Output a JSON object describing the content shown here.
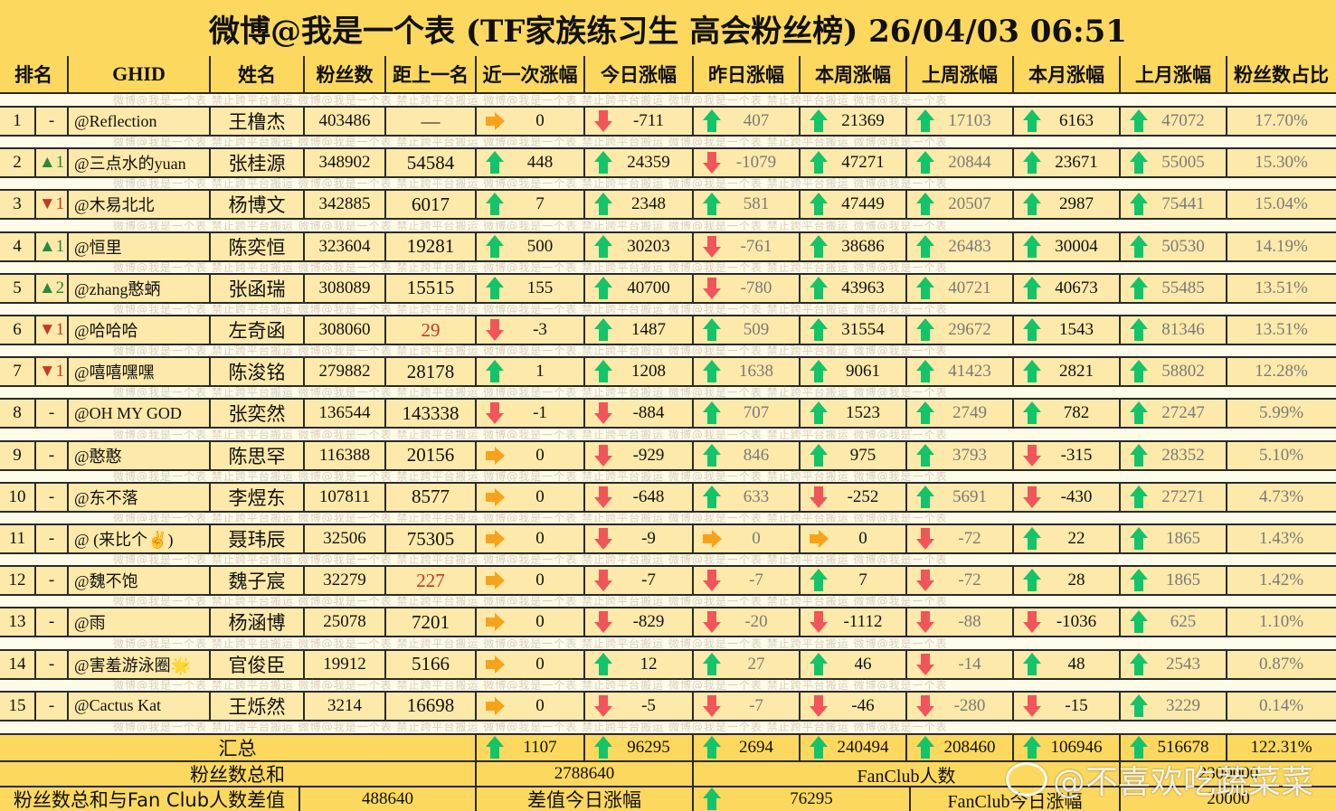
{
  "title": "微博@我是一个表 (TF家族练习生 高会粉丝榜)  26/04/03 06:51",
  "watermark_strip": "微博@我是一个表   禁止跨平台搬运   微博@我是一个表   禁止跨平台搬运   微博@我是一个表   禁止跨平台搬运   微博@我是一个表   禁止跨平台搬运   微博@我是一个表",
  "headers": {
    "rank": "排名",
    "ghid": "GHID",
    "name": "姓名",
    "fans": "粉丝数",
    "gap": "距上一名",
    "recent": "近一次涨幅",
    "today": "今日涨幅",
    "yesterday": "昨日涨幅",
    "this_week": "本周涨幅",
    "last_week": "上周涨幅",
    "this_month": "本月涨幅",
    "last_month": "上月涨幅",
    "share": "粉丝数占比"
  },
  "colors": {
    "header_bg": "#fcd85e",
    "row_bg": "#fde9a9",
    "up": "#13c46a",
    "down": "#f0555a",
    "flat": "#f7a21b",
    "gap_alert": "#c0392b"
  },
  "rows": [
    {
      "rank": "1",
      "change": "-",
      "change_dir": "none",
      "ghid": "@Reflection",
      "name": "王橹杰",
      "fans": "403486",
      "gap": "—",
      "gap_alert": false,
      "recent": {
        "dir": "right",
        "v": "0"
      },
      "today": {
        "dir": "down",
        "v": "-711"
      },
      "yesterday": {
        "dir": "up",
        "v": "407"
      },
      "this_week": {
        "dir": "up",
        "v": "21369"
      },
      "last_week": {
        "dir": "up",
        "v": "17103"
      },
      "this_month": {
        "dir": "up",
        "v": "6163"
      },
      "last_month": {
        "dir": "up",
        "v": "47072"
      },
      "share": "17.70%"
    },
    {
      "rank": "2",
      "change": "▲1",
      "change_dir": "up",
      "ghid": "@三点水的yuan",
      "name": "张桂源",
      "fans": "348902",
      "gap": "54584",
      "gap_alert": false,
      "recent": {
        "dir": "up",
        "v": "448"
      },
      "today": {
        "dir": "up",
        "v": "24359"
      },
      "yesterday": {
        "dir": "down",
        "v": "-1079"
      },
      "this_week": {
        "dir": "up",
        "v": "47271"
      },
      "last_week": {
        "dir": "up",
        "v": "20844"
      },
      "this_month": {
        "dir": "up",
        "v": "23671"
      },
      "last_month": {
        "dir": "up",
        "v": "55005"
      },
      "share": "15.30%"
    },
    {
      "rank": "3",
      "change": "▼1",
      "change_dir": "down",
      "ghid": "@木易北北",
      "name": "杨博文",
      "fans": "342885",
      "gap": "6017",
      "gap_alert": false,
      "recent": {
        "dir": "up",
        "v": "7"
      },
      "today": {
        "dir": "up",
        "v": "2348"
      },
      "yesterday": {
        "dir": "up",
        "v": "581"
      },
      "this_week": {
        "dir": "up",
        "v": "47449"
      },
      "last_week": {
        "dir": "up",
        "v": "20507"
      },
      "this_month": {
        "dir": "up",
        "v": "2987"
      },
      "last_month": {
        "dir": "up",
        "v": "75441"
      },
      "share": "15.04%"
    },
    {
      "rank": "4",
      "change": "▲1",
      "change_dir": "up",
      "ghid": "@恒里",
      "name": "陈奕恒",
      "fans": "323604",
      "gap": "19281",
      "gap_alert": false,
      "recent": {
        "dir": "up",
        "v": "500"
      },
      "today": {
        "dir": "up",
        "v": "30203"
      },
      "yesterday": {
        "dir": "down",
        "v": "-761"
      },
      "this_week": {
        "dir": "up",
        "v": "38686"
      },
      "last_week": {
        "dir": "up",
        "v": "26483"
      },
      "this_month": {
        "dir": "up",
        "v": "30004"
      },
      "last_month": {
        "dir": "up",
        "v": "50530"
      },
      "share": "14.19%"
    },
    {
      "rank": "5",
      "change": "▲2",
      "change_dir": "up",
      "ghid": "@zhang憨蛃",
      "name": "张函瑞",
      "fans": "308089",
      "gap": "15515",
      "gap_alert": false,
      "recent": {
        "dir": "up",
        "v": "155"
      },
      "today": {
        "dir": "up",
        "v": "40700"
      },
      "yesterday": {
        "dir": "down",
        "v": "-780"
      },
      "this_week": {
        "dir": "up",
        "v": "43963"
      },
      "last_week": {
        "dir": "up",
        "v": "40721"
      },
      "this_month": {
        "dir": "up",
        "v": "40673"
      },
      "last_month": {
        "dir": "up",
        "v": "55485"
      },
      "share": "13.51%"
    },
    {
      "rank": "6",
      "change": "▼1",
      "change_dir": "down",
      "ghid": "@哈哈哈",
      "name": "左奇函",
      "fans": "308060",
      "gap": "29",
      "gap_alert": true,
      "recent": {
        "dir": "down",
        "v": "-3"
      },
      "today": {
        "dir": "up",
        "v": "1487"
      },
      "yesterday": {
        "dir": "up",
        "v": "509"
      },
      "this_week": {
        "dir": "up",
        "v": "31554"
      },
      "last_week": {
        "dir": "up",
        "v": "29672"
      },
      "this_month": {
        "dir": "up",
        "v": "1543"
      },
      "last_month": {
        "dir": "up",
        "v": "81346"
      },
      "share": "13.51%"
    },
    {
      "rank": "7",
      "change": "▼1",
      "change_dir": "down",
      "ghid": "@嘻嘻嘿嘿",
      "name": "陈浚铭",
      "fans": "279882",
      "gap": "28178",
      "gap_alert": false,
      "recent": {
        "dir": "up",
        "v": "1"
      },
      "today": {
        "dir": "up",
        "v": "1208"
      },
      "yesterday": {
        "dir": "up",
        "v": "1638"
      },
      "this_week": {
        "dir": "up",
        "v": "9061"
      },
      "last_week": {
        "dir": "up",
        "v": "41423"
      },
      "this_month": {
        "dir": "up",
        "v": "2821"
      },
      "last_month": {
        "dir": "up",
        "v": "58802"
      },
      "share": "12.28%"
    },
    {
      "rank": "8",
      "change": "-",
      "change_dir": "none",
      "ghid": "@OH MY GOD",
      "name": "张奕然",
      "fans": "136544",
      "gap": "143338",
      "gap_alert": false,
      "recent": {
        "dir": "down",
        "v": "-1"
      },
      "today": {
        "dir": "down",
        "v": "-884"
      },
      "yesterday": {
        "dir": "up",
        "v": "707"
      },
      "this_week": {
        "dir": "up",
        "v": "1523"
      },
      "last_week": {
        "dir": "up",
        "v": "2749"
      },
      "this_month": {
        "dir": "up",
        "v": "782"
      },
      "last_month": {
        "dir": "up",
        "v": "27247"
      },
      "share": "5.99%"
    },
    {
      "rank": "9",
      "change": "-",
      "change_dir": "none",
      "ghid": "@憨憨",
      "name": "陈思罕",
      "fans": "116388",
      "gap": "20156",
      "gap_alert": false,
      "recent": {
        "dir": "right",
        "v": "0"
      },
      "today": {
        "dir": "down",
        "v": "-929"
      },
      "yesterday": {
        "dir": "up",
        "v": "846"
      },
      "this_week": {
        "dir": "up",
        "v": "975"
      },
      "last_week": {
        "dir": "up",
        "v": "3793"
      },
      "this_month": {
        "dir": "down",
        "v": "-315"
      },
      "last_month": {
        "dir": "up",
        "v": "28352"
      },
      "share": "5.10%"
    },
    {
      "rank": "10",
      "change": "-",
      "change_dir": "none",
      "ghid": "@东不落",
      "name": "李煜东",
      "fans": "107811",
      "gap": "8577",
      "gap_alert": false,
      "recent": {
        "dir": "right",
        "v": "0"
      },
      "today": {
        "dir": "down",
        "v": "-648"
      },
      "yesterday": {
        "dir": "up",
        "v": "633"
      },
      "this_week": {
        "dir": "down",
        "v": "-252"
      },
      "last_week": {
        "dir": "up",
        "v": "5691"
      },
      "this_month": {
        "dir": "down",
        "v": "-430"
      },
      "last_month": {
        "dir": "up",
        "v": "27271"
      },
      "share": "4.73%"
    },
    {
      "rank": "11",
      "change": "-",
      "change_dir": "none",
      "ghid": "@ (来比个✌️)",
      "name": "聂玮辰",
      "fans": "32506",
      "gap": "75305",
      "gap_alert": false,
      "recent": {
        "dir": "right",
        "v": "0"
      },
      "today": {
        "dir": "down",
        "v": "-9"
      },
      "yesterday": {
        "dir": "right",
        "v": "0"
      },
      "this_week": {
        "dir": "right",
        "v": "0"
      },
      "last_week": {
        "dir": "down",
        "v": "-72"
      },
      "this_month": {
        "dir": "up",
        "v": "22"
      },
      "last_month": {
        "dir": "up",
        "v": "1865"
      },
      "share": "1.43%"
    },
    {
      "rank": "12",
      "change": "-",
      "change_dir": "none",
      "ghid": "@魏不饱",
      "name": "魏子宸",
      "fans": "32279",
      "gap": "227",
      "gap_alert": true,
      "recent": {
        "dir": "right",
        "v": "0"
      },
      "today": {
        "dir": "down",
        "v": "-7"
      },
      "yesterday": {
        "dir": "down",
        "v": "-7"
      },
      "this_week": {
        "dir": "up",
        "v": "7"
      },
      "last_week": {
        "dir": "down",
        "v": "-72"
      },
      "this_month": {
        "dir": "up",
        "v": "28"
      },
      "last_month": {
        "dir": "up",
        "v": "1865"
      },
      "share": "1.42%"
    },
    {
      "rank": "13",
      "change": "-",
      "change_dir": "none",
      "ghid": "@雨",
      "name": "杨涵博",
      "fans": "25078",
      "gap": "7201",
      "gap_alert": false,
      "recent": {
        "dir": "right",
        "v": "0"
      },
      "today": {
        "dir": "down",
        "v": "-829"
      },
      "yesterday": {
        "dir": "down",
        "v": "-20"
      },
      "this_week": {
        "dir": "down",
        "v": "-1112"
      },
      "last_week": {
        "dir": "down",
        "v": "-88"
      },
      "this_month": {
        "dir": "down",
        "v": "-1036"
      },
      "last_month": {
        "dir": "up",
        "v": "625"
      },
      "share": "1.10%"
    },
    {
      "rank": "14",
      "change": "-",
      "change_dir": "none",
      "ghid": "@害羞游泳圈🌟",
      "name": "官俊臣",
      "fans": "19912",
      "gap": "5166",
      "gap_alert": false,
      "recent": {
        "dir": "right",
        "v": "0"
      },
      "today": {
        "dir": "up",
        "v": "12"
      },
      "yesterday": {
        "dir": "up",
        "v": "27"
      },
      "this_week": {
        "dir": "up",
        "v": "46"
      },
      "last_week": {
        "dir": "down",
        "v": "-14"
      },
      "this_month": {
        "dir": "up",
        "v": "48"
      },
      "last_month": {
        "dir": "up",
        "v": "2543"
      },
      "share": "0.87%"
    },
    {
      "rank": "15",
      "change": "-",
      "change_dir": "none",
      "ghid": "@Cactus Kat",
      "name": "王烁然",
      "fans": "3214",
      "gap": "16698",
      "gap_alert": false,
      "recent": {
        "dir": "right",
        "v": "0"
      },
      "today": {
        "dir": "down",
        "v": "-5"
      },
      "yesterday": {
        "dir": "down",
        "v": "-7"
      },
      "this_week": {
        "dir": "down",
        "v": "-46"
      },
      "last_week": {
        "dir": "down",
        "v": "-280"
      },
      "this_month": {
        "dir": "down",
        "v": "-15"
      },
      "last_month": {
        "dir": "up",
        "v": "3229"
      },
      "share": "0.14%"
    }
  ],
  "summary": {
    "label": "汇总",
    "recent": {
      "dir": "up",
      "v": "1107"
    },
    "today": {
      "dir": "up",
      "v": "96295"
    },
    "yesterday": {
      "dir": "up",
      "v": "2694"
    },
    "this_week": {
      "dir": "up",
      "v": "240494"
    },
    "last_week": {
      "dir": "up",
      "v": "208460"
    },
    "this_month": {
      "dir": "up",
      "v": "106946"
    },
    "last_month": {
      "dir": "up",
      "v": "516678"
    },
    "share": "122.31%"
  },
  "totals": {
    "fans_sum_label": "粉丝数总和",
    "fans_sum_value": "2788640",
    "fanclub_label": "FanClub人数",
    "fanclub_value": "2300000",
    "diff_label": "粉丝数总和与Fan Club人数差值",
    "diff_value": "488640",
    "diff_today_label": "差值今日涨幅",
    "diff_today": {
      "dir": "up",
      "v": "76295"
    },
    "fanclub_today_label": "FanClub今日涨幅",
    "fanclub_today_value": "20000"
  },
  "weibo_watermark": "@不喜欢吃蔬菜菜"
}
